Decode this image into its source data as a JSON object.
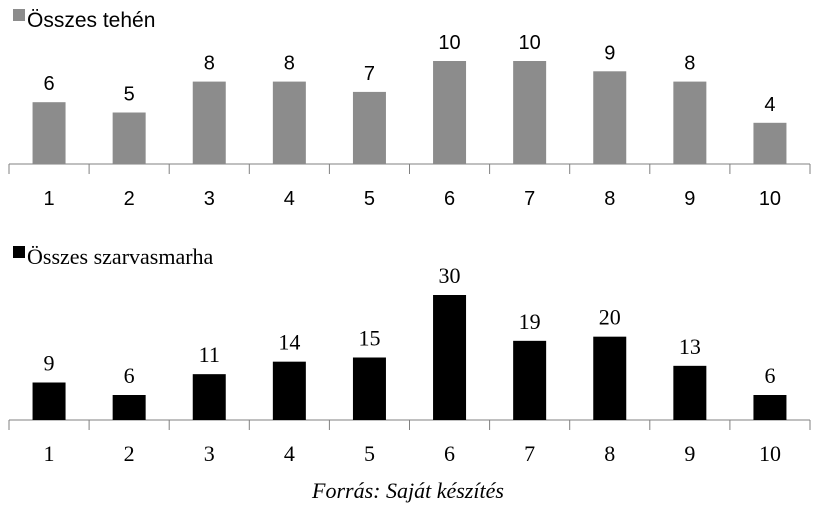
{
  "chart_data": [
    {
      "type": "bar",
      "categories": [
        "1",
        "2",
        "3",
        "4",
        "5",
        "6",
        "7",
        "8",
        "9",
        "10"
      ],
      "series": [
        {
          "name": "Összes tehén",
          "values": [
            6,
            5,
            8,
            8,
            7,
            10,
            10,
            9,
            8,
            4
          ],
          "color": "#8c8c8c"
        }
      ],
      "data_labels": [
        "6",
        "5",
        "8",
        "8",
        "7",
        "10",
        "10",
        "9",
        "8",
        "4"
      ],
      "title": "",
      "xlabel": "",
      "ylabel": "",
      "ylim": [
        0,
        10
      ],
      "grid": false,
      "legend_position": "top-left"
    },
    {
      "type": "bar",
      "categories": [
        "1",
        "2",
        "3",
        "4",
        "5",
        "6",
        "7",
        "8",
        "9",
        "10"
      ],
      "series": [
        {
          "name": "Összes szarvasmarha",
          "values": [
            9,
            6,
            11,
            14,
            15,
            30,
            19,
            20,
            13,
            6
          ],
          "color": "#000000"
        }
      ],
      "data_labels": [
        "9",
        "6",
        "11",
        "14",
        "15",
        "30",
        "19",
        "20",
        "13",
        "6"
      ],
      "title": "",
      "xlabel": "",
      "ylabel": "",
      "ylim": [
        0,
        30
      ],
      "grid": false,
      "legend_position": "top-left"
    }
  ],
  "caption": "Forrás: Saját készítés"
}
